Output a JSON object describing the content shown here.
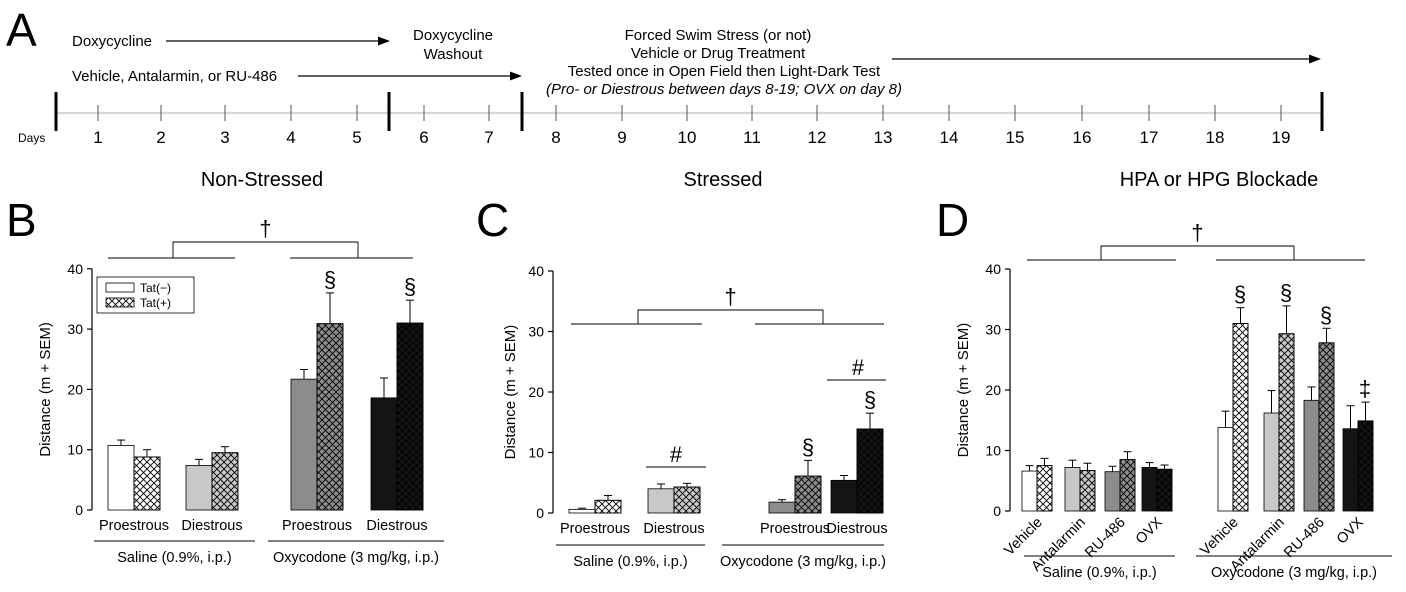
{
  "timeline": {
    "panel_label": "A",
    "days_label": "Days",
    "days": [
      "1",
      "2",
      "3",
      "4",
      "5",
      "6",
      "7",
      "8",
      "9",
      "10",
      "11",
      "12",
      "13",
      "14",
      "15",
      "16",
      "17",
      "18",
      "19"
    ],
    "doxy": "Doxycycline",
    "vehicle_drugs": "Vehicle, Antalarmin, or RU-486",
    "washout_1": "Doxycycline",
    "washout_2": "Washout",
    "fss_1": "Forced Swim Stress (or not)",
    "fss_2": "Vehicle or Drug Treatment",
    "fss_3": "Tested once in Open Field then Light-Dark Test",
    "fss_4": "(Pro- or Diestrous between days 8-19; OVX on day 8)",
    "sec_nonstressed": "Non-Stressed",
    "sec_stressed": "Stressed",
    "sec_blockade": "HPA or HPG Blockade"
  },
  "colors": {
    "white": "#ffffff",
    "light_gray": "#c8c8c8",
    "mid_gray": "#8c8c8c",
    "black": "#141414",
    "axis": "#000000"
  },
  "chart_data": [
    {
      "panel": "B",
      "type": "bar",
      "ylabel": "Distance (m + SEM)",
      "ylim": [
        0,
        40
      ],
      "yticks": [
        "0",
        "10",
        "20",
        "30",
        "40"
      ],
      "legend": [
        "Tat(−)",
        "Tat(+)"
      ],
      "legend_position": "top-left",
      "categories": [
        "Proestrous",
        "Diestrous",
        "Proestrous",
        "Diestrous"
      ],
      "groups": [
        "Saline (0.9%, i.p.)",
        "Oxycodone (3 mg/kg, i.p.)"
      ],
      "series": [
        {
          "name": "Tat(−)",
          "values": [
            10.7,
            7.4,
            21.7,
            18.6
          ],
          "sem": [
            0.9,
            1.0,
            1.6,
            3.3
          ]
        },
        {
          "name": "Tat(+)",
          "values": [
            8.8,
            9.5,
            30.9,
            31.0
          ],
          "sem": [
            1.2,
            1.0,
            5.1,
            3.8
          ]
        }
      ],
      "annotations": {
        "top": "†",
        "section": [
          "§",
          "§"
        ]
      }
    },
    {
      "panel": "C",
      "type": "bar",
      "ylabel": "Distance (m + SEM)",
      "ylim": [
        0,
        40
      ],
      "yticks": [
        "0",
        "10",
        "20",
        "30",
        "40"
      ],
      "categories": [
        "Proestrous",
        "Diestrous",
        "Proestrous",
        "Diestrous"
      ],
      "groups": [
        "Saline (0.9%, i.p.)",
        "Oxycodone (3 mg/kg, i.p.)"
      ],
      "series": [
        {
          "values": [
            0.6,
            4.0,
            1.8,
            5.4
          ],
          "sem": [
            0.2,
            0.8,
            0.4,
            0.8
          ]
        },
        {
          "values": [
            2.1,
            4.3,
            6.1,
            13.9
          ],
          "sem": [
            0.8,
            0.6,
            2.6,
            2.6
          ]
        }
      ],
      "annotations": {
        "top": "†",
        "hash": [
          "#",
          "#"
        ],
        "section": [
          "§",
          "§"
        ]
      }
    },
    {
      "panel": "D",
      "type": "bar",
      "ylabel": "Distance (m + SEM)",
      "ylim": [
        0,
        40
      ],
      "yticks": [
        "0",
        "10",
        "20",
        "30",
        "40"
      ],
      "categories": [
        "Vehicle",
        "Antalarmin",
        "RU-486",
        "OVX",
        "Vehicle",
        "Antalarmin",
        "RU-486",
        "OVX"
      ],
      "groups": [
        "Saline (0.9%, i.p.)",
        "Oxycodone (3 mg/kg, i.p.)"
      ],
      "series": [
        {
          "values": [
            6.6,
            7.2,
            6.5,
            7.2,
            13.8,
            16.2,
            18.3,
            13.6
          ],
          "sem": [
            0.9,
            1.2,
            0.9,
            0.8,
            2.7,
            3.7,
            2.2,
            3.8
          ]
        },
        {
          "values": [
            7.5,
            6.7,
            8.5,
            6.9,
            31.0,
            29.3,
            27.8,
            14.9
          ],
          "sem": [
            1.2,
            1.2,
            1.3,
            0.7,
            2.6,
            4.6,
            2.4,
            3.1
          ]
        }
      ],
      "annotations": {
        "top": "†",
        "section": [
          "§",
          "§",
          "§"
        ],
        "double_dagger": "‡"
      }
    }
  ]
}
